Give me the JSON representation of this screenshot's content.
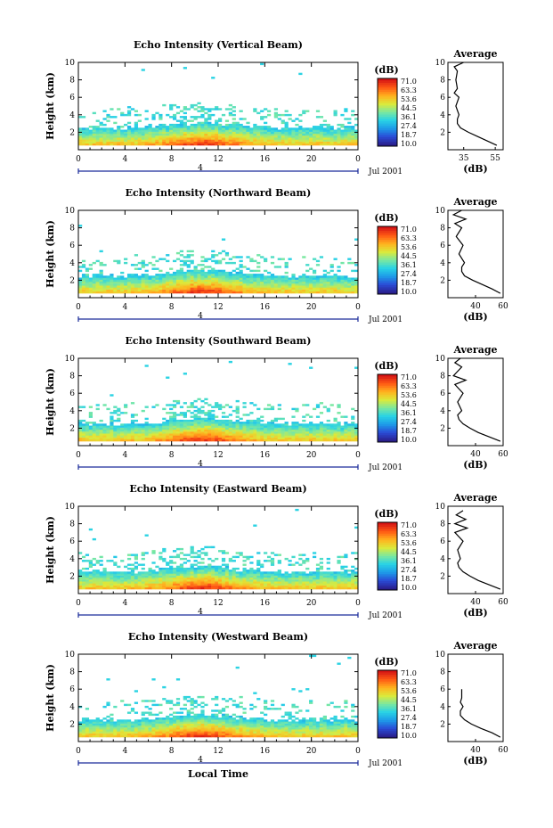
{
  "figure": {
    "xlabel": "Local Time"
  },
  "colorbar": {
    "unit": "(dB)",
    "labels": [
      "71.0",
      "63.3",
      "53.6",
      "44.5",
      "36.1",
      "27.4",
      "18.7",
      "10.0"
    ],
    "colors": [
      "#2a1f8c",
      "#2a4bd6",
      "#1e9be8",
      "#28d2e6",
      "#7ae8a0",
      "#dcea3a",
      "#ffb21e",
      "#ff5a14",
      "#d41414"
    ]
  },
  "chart_data": [
    {
      "type": "heatmap",
      "title": "Echo Intensity (Vertical Beam)",
      "xlabel": "",
      "ylabel": "Height (km)",
      "xlim": [
        0,
        24
      ],
      "ylim": [
        0,
        10
      ],
      "xticks": [
        "0",
        "4",
        "8",
        "12",
        "16",
        "20",
        "0"
      ],
      "yticks": [
        "2",
        "4",
        "6",
        "8",
        "10"
      ],
      "date_label": "Jul 2001",
      "interval_label": "4",
      "value_range": [
        10.0,
        71.0
      ],
      "avg_profile": {
        "title": "Average",
        "xlabel": "(dB)",
        "xticks": [
          "35",
          "55"
        ],
        "xlim": [
          25,
          60
        ],
        "yticks": [
          "2",
          "4",
          "6",
          "8",
          "10"
        ],
        "height": [
          0.5,
          1,
          1.5,
          2,
          2.5,
          3,
          3.5,
          4,
          5,
          6,
          6.5,
          7,
          8,
          9,
          9.5,
          10
        ],
        "db": [
          56,
          50,
          44,
          38,
          33,
          31,
          31,
          32,
          30,
          32,
          29,
          31,
          30,
          31,
          29,
          35
        ]
      }
    },
    {
      "type": "heatmap",
      "title": "Echo Intensity (Northward Beam)",
      "xlabel": "",
      "ylabel": "Height (km)",
      "xlim": [
        0,
        24
      ],
      "ylim": [
        0,
        10
      ],
      "xticks": [
        "0",
        "4",
        "8",
        "12",
        "16",
        "20",
        "0"
      ],
      "yticks": [
        "2",
        "4",
        "6",
        "8",
        "10"
      ],
      "date_label": "Jul 2001",
      "interval_label": "4",
      "value_range": [
        10.0,
        71.0
      ],
      "avg_profile": {
        "title": "Average",
        "xlabel": "(dB)",
        "xticks": [
          "40",
          "60"
        ],
        "xlim": [
          20,
          60
        ],
        "yticks": [
          "2",
          "4",
          "6",
          "8",
          "10"
        ],
        "height": [
          0.5,
          1,
          1.5,
          2,
          2.5,
          3,
          3.5,
          4,
          5,
          6,
          7,
          8,
          8.5,
          9,
          9.5,
          10
        ],
        "db": [
          58,
          52,
          45,
          38,
          32,
          30,
          30,
          32,
          28,
          31,
          26,
          30,
          25,
          33,
          24,
          30
        ]
      }
    },
    {
      "type": "heatmap",
      "title": "Echo Intensity (Southward Beam)",
      "xlabel": "",
      "ylabel": "Height (km)",
      "xlim": [
        0,
        24
      ],
      "ylim": [
        0,
        10
      ],
      "xticks": [
        "0",
        "4",
        "8",
        "12",
        "16",
        "20",
        "0"
      ],
      "yticks": [
        "2",
        "4",
        "6",
        "8",
        "10"
      ],
      "date_label": "Jul 2001",
      "interval_label": "4",
      "value_range": [
        10.0,
        71.0
      ],
      "avg_profile": {
        "title": "Average",
        "xlabel": "(dB)",
        "xticks": [
          "40",
          "60"
        ],
        "xlim": [
          20,
          60
        ],
        "yticks": [
          "2",
          "4",
          "6",
          "8",
          "10"
        ],
        "height": [
          0.5,
          1,
          1.5,
          2,
          2.5,
          3,
          3.5,
          4,
          5,
          6,
          7,
          7.5,
          8,
          9,
          9.5,
          10
        ],
        "db": [
          58,
          50,
          42,
          36,
          31,
          28,
          27,
          30,
          27,
          31,
          25,
          33,
          24,
          30,
          25,
          29
        ]
      }
    },
    {
      "type": "heatmap",
      "title": "Echo Intensity (Eastward Beam)",
      "xlabel": "",
      "ylabel": "Height (km)",
      "xlim": [
        0,
        24
      ],
      "ylim": [
        0,
        10
      ],
      "xticks": [
        "0",
        "4",
        "8",
        "12",
        "16",
        "20",
        "0"
      ],
      "yticks": [
        "2",
        "4",
        "6",
        "8",
        "10"
      ],
      "date_label": "Jul 2001",
      "interval_label": "4",
      "value_range": [
        10.0,
        71.0
      ],
      "avg_profile": {
        "title": "Average",
        "xlabel": "(dB)",
        "xticks": [
          "40",
          "60"
        ],
        "xlim": [
          20,
          60
        ],
        "yticks": [
          "2",
          "4",
          "6",
          "8",
          "10"
        ],
        "height": [
          0.5,
          1,
          1.5,
          2,
          2.5,
          3,
          3.5,
          4,
          5,
          6,
          7,
          7.5,
          8,
          8.5,
          9,
          9.5
        ],
        "db": [
          58,
          50,
          42,
          36,
          31,
          28,
          27,
          29,
          27,
          31,
          25,
          34,
          25,
          33,
          26,
          31
        ]
      }
    },
    {
      "type": "heatmap",
      "title": "Echo Intensity (Westward Beam)",
      "xlabel": "Local Time",
      "ylabel": "Height (km)",
      "xlim": [
        0,
        24
      ],
      "ylim": [
        0,
        10
      ],
      "xticks": [
        "0",
        "4",
        "8",
        "12",
        "16",
        "20",
        "0"
      ],
      "yticks": [
        "2",
        "4",
        "6",
        "8",
        "10"
      ],
      "date_label": "Jul 2001",
      "interval_label": "4",
      "value_range": [
        10.0,
        71.0
      ],
      "avg_profile": {
        "title": "Average",
        "xlabel": "(dB)",
        "xticks": [
          "40",
          "60"
        ],
        "xlim": [
          20,
          60
        ],
        "yticks": [
          "2",
          "4",
          "6",
          "8",
          "10"
        ],
        "height": [
          0.5,
          1,
          1.5,
          2,
          2.5,
          3,
          3.5,
          4,
          4.5,
          5,
          6
        ],
        "db": [
          58,
          52,
          44,
          37,
          32,
          29,
          29,
          31,
          29,
          30,
          30
        ]
      }
    }
  ]
}
